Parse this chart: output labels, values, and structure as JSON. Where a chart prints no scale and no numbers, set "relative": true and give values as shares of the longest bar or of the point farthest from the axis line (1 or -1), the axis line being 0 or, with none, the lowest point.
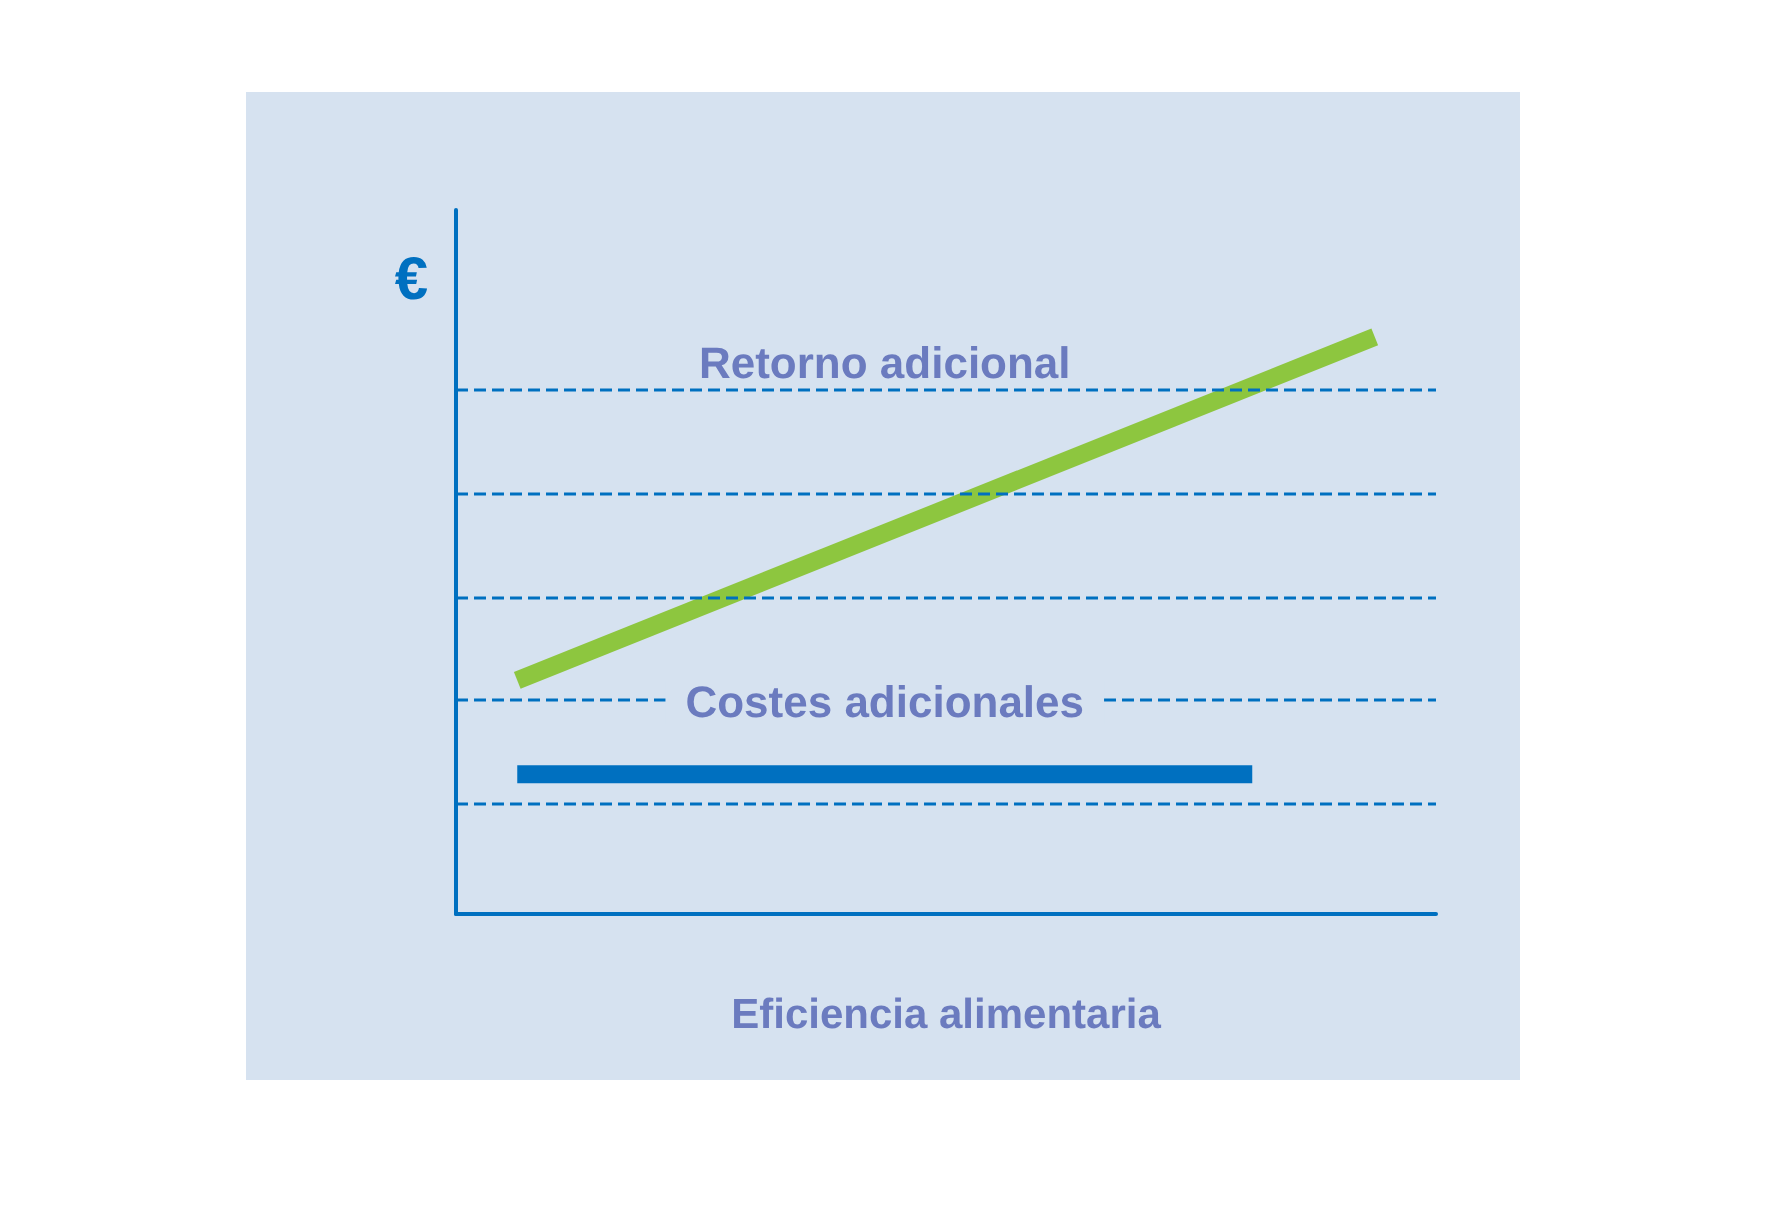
{
  "chart_data": {
    "type": "line",
    "relative": true,
    "ylabel": "€",
    "xlabel": "Eficiencia alimentaria",
    "categories": [
      null,
      null,
      null,
      null,
      null,
      null,
      null,
      null
    ],
    "series": [
      {
        "name": "Retorno adicional",
        "color": "#8dc63f",
        "values": [
          0.405,
          null,
          null,
          null,
          null,
          null,
          null,
          1
        ]
      },
      {
        "name": "Costes adicionales",
        "color": "#0070c0",
        "values": [
          0.242,
          0.242,
          0.242,
          0.242,
          0.242,
          0.242,
          0.242,
          null
        ]
      }
    ],
    "ref_lines": [
      {
        "axis": "y",
        "value": 0.913,
        "color": "#0070c0",
        "line_style": "dashed"
      },
      {
        "axis": "y",
        "value": 0.73,
        "color": "#0070c0",
        "line_style": "dashed"
      },
      {
        "axis": "y",
        "value": 0.55,
        "color": "#0070c0",
        "line_style": "dashed"
      },
      {
        "axis": "y",
        "value": 0.367,
        "color": "#0070c0",
        "line_style": "dashed"
      },
      {
        "axis": "y",
        "value": 0.187,
        "color": "#0070c0",
        "line_style": "dashed"
      }
    ],
    "legend": false,
    "marker": "none",
    "line_style": "solid"
  }
}
